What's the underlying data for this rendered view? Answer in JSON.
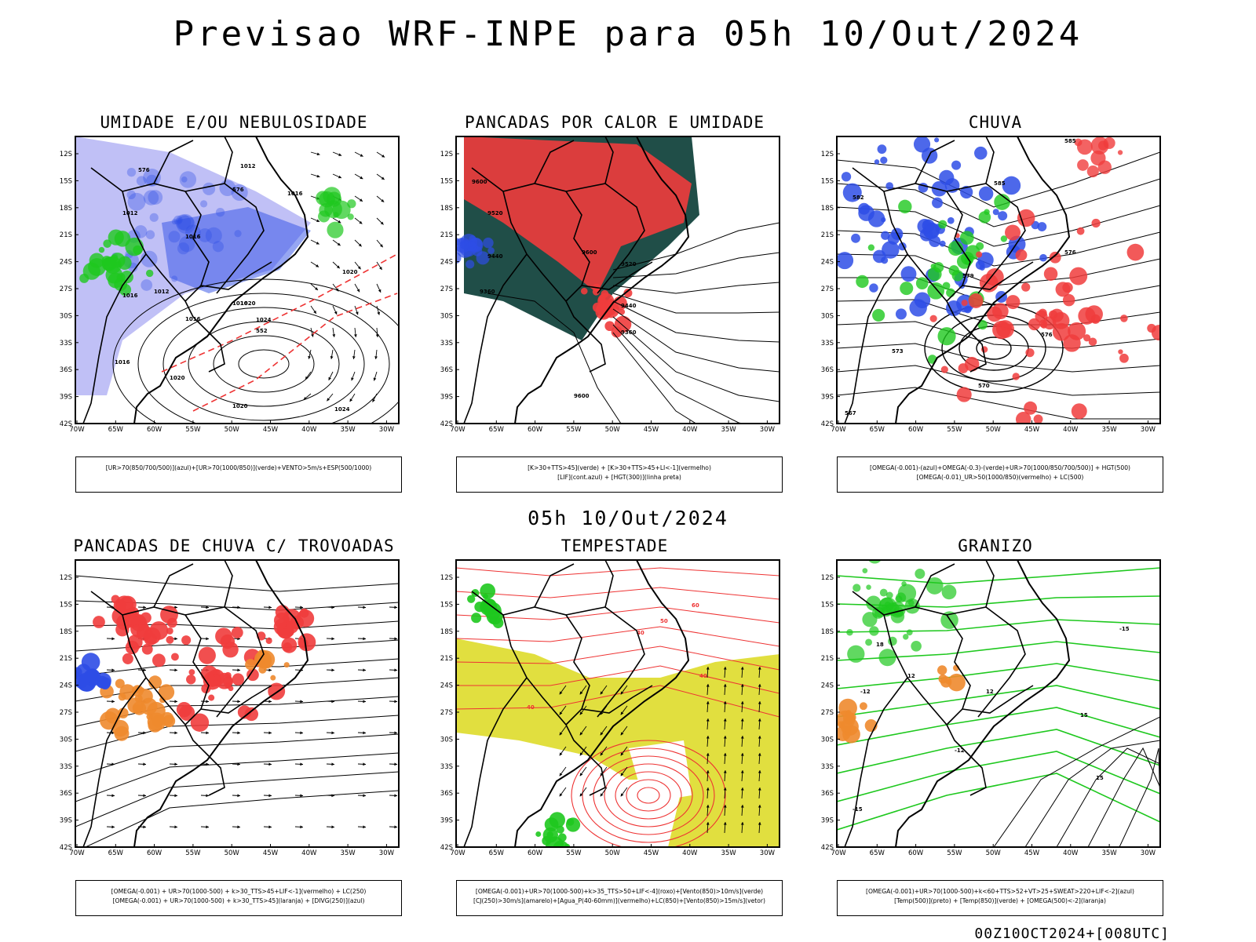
{
  "title": "Previsao WRF-INPE  para 05h 10/Out/2024",
  "subtitle": "05h 10/Out/2024",
  "footer": "00Z10OCT2024+[008UTC]",
  "axes": {
    "lat_labels": [
      "12S",
      "15S",
      "18S",
      "21S",
      "24S",
      "27S",
      "30S",
      "33S",
      "36S",
      "39S",
      "42S"
    ],
    "lon_labels": [
      "70W",
      "65W",
      "60W",
      "55W",
      "50W",
      "45W",
      "40W",
      "35W",
      "30W"
    ]
  },
  "panels": [
    {
      "title": "UMIDADE E/OU NEBULOSIDADE",
      "legend": [
        "[UR>70(850/700/500)](azul)+[UR>70(1000/850)](verde)+VENTO>5m/s+ESP(500/1000)"
      ],
      "contour_labels": [
        "1012",
        "1016",
        "1012",
        "1016",
        "1012",
        "1016",
        "1016",
        "1020",
        "1016",
        "1024",
        "1020",
        "1016",
        "1020",
        "1024",
        "1020",
        "552",
        "576",
        "576"
      ]
    },
    {
      "title": "PANCADAS POR CALOR E UMIDADE",
      "legend": [
        "[K>30+TTS>45](verde) + [K>30+TTS>45+LI<-1](vermelho)",
        "[LIF](cont.azul) + [HGT(300)](linha preta)"
      ],
      "contour_labels": [
        "9600",
        "9520",
        "9440",
        "9360",
        "9600",
        "9520",
        "9440",
        "9360",
        "9600"
      ]
    },
    {
      "title": "CHUVA",
      "legend": [
        "[OMEGA(-0.001)-(azul)+OMEGA(-0.3)-(verde)+UR>70(1000/850/700/500)] + HGT(500)",
        "[OMEGA(-0.01)_UR>50(1000/850)(vermelho) + LC(500)"
      ],
      "contour_labels": [
        "585",
        "585",
        "582",
        "579",
        "576",
        "573",
        "570",
        "567",
        "576"
      ]
    },
    {
      "title": "PANCADAS DE CHUVA C/ TROVOADAS",
      "legend": [
        "[OMEGA(-0.001) + UR>70(1000-500) + k>30_TTS>45+LIF<-1](vermelho) + LC(250)",
        "[OMEGA(-0.001) + UR>70(1000-500) + k>30_TTS>45](laranja) + [DIVG(250)](azul)"
      ],
      "contour_labels": []
    },
    {
      "title": "TEMPESTADE",
      "legend": [
        "[OMEGA(-0.001)+UR>70(1000-500)+k>35_TTS>50+LIF<-4](roxo)+[Vento(850)>10m/s](verde)",
        "[CJ(250)>30m/s](amarelo)+[Agua_P(40-60mm)](vermelho)+LC(850)+[Vento(850)>15m/s](vetor)"
      ],
      "contour_labels": [
        "40",
        "40",
        "50",
        "60",
        "40"
      ]
    },
    {
      "title": "GRANIZO",
      "legend": [
        "[OMEGA(-0.001)+UR>70(1000-500)+k<60+TTS>52+VT>25+SWEAT>220+LIF<-2](azul)",
        "[Temp(500)](preto) + [Temp(850)](verde) + [OMEGA(500)<-2](laranja)"
      ],
      "contour_labels": [
        "-12",
        "-15",
        "12",
        "15",
        "12",
        "-12",
        "15",
        "-15",
        "18"
      ]
    }
  ],
  "colors": {
    "azul": "#2e4de6",
    "lavender": "#8c8cee",
    "verde": "#1ec81e",
    "vermelho": "#f03c3c",
    "laranja": "#ee8a2e",
    "amarelo": "#dedb2a",
    "teal": "#14443e",
    "preto": "#000000"
  }
}
